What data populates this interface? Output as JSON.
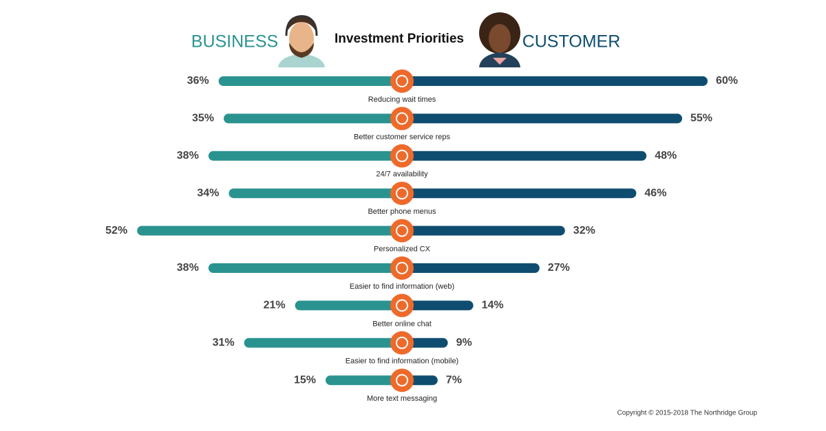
{
  "chart_data": {
    "type": "butterfly",
    "title": "Investment Priorities",
    "categories": [
      "Reducing wait times",
      "Better customer service reps",
      "24/7 availability",
      "Better phone menus",
      "Personalized CX",
      "Easier to find information (web)",
      "Better online chat",
      "Easier to find information (mobile)",
      "More text messaging"
    ],
    "series": [
      {
        "name": "BUSINESS",
        "color": "#2a9390",
        "values": [
          36,
          35,
          38,
          34,
          52,
          38,
          21,
          31,
          15
        ],
        "value_labels": [
          "36%",
          "35%",
          "38%",
          "34%",
          "52%",
          "38%",
          "21%",
          "31%",
          "15%"
        ]
      },
      {
        "name": "CUSTOMER",
        "color": "#0f4d70",
        "values": [
          60,
          55,
          48,
          46,
          32,
          27,
          14,
          9,
          7
        ],
        "value_labels": [
          "60%",
          "55%",
          "48%",
          "46%",
          "32%",
          "27%",
          "14%",
          "9%",
          "7%"
        ]
      }
    ],
    "icon_color": "#ee6a2b",
    "footer": "Copyright © 2015-2018 The Northridge Group"
  }
}
